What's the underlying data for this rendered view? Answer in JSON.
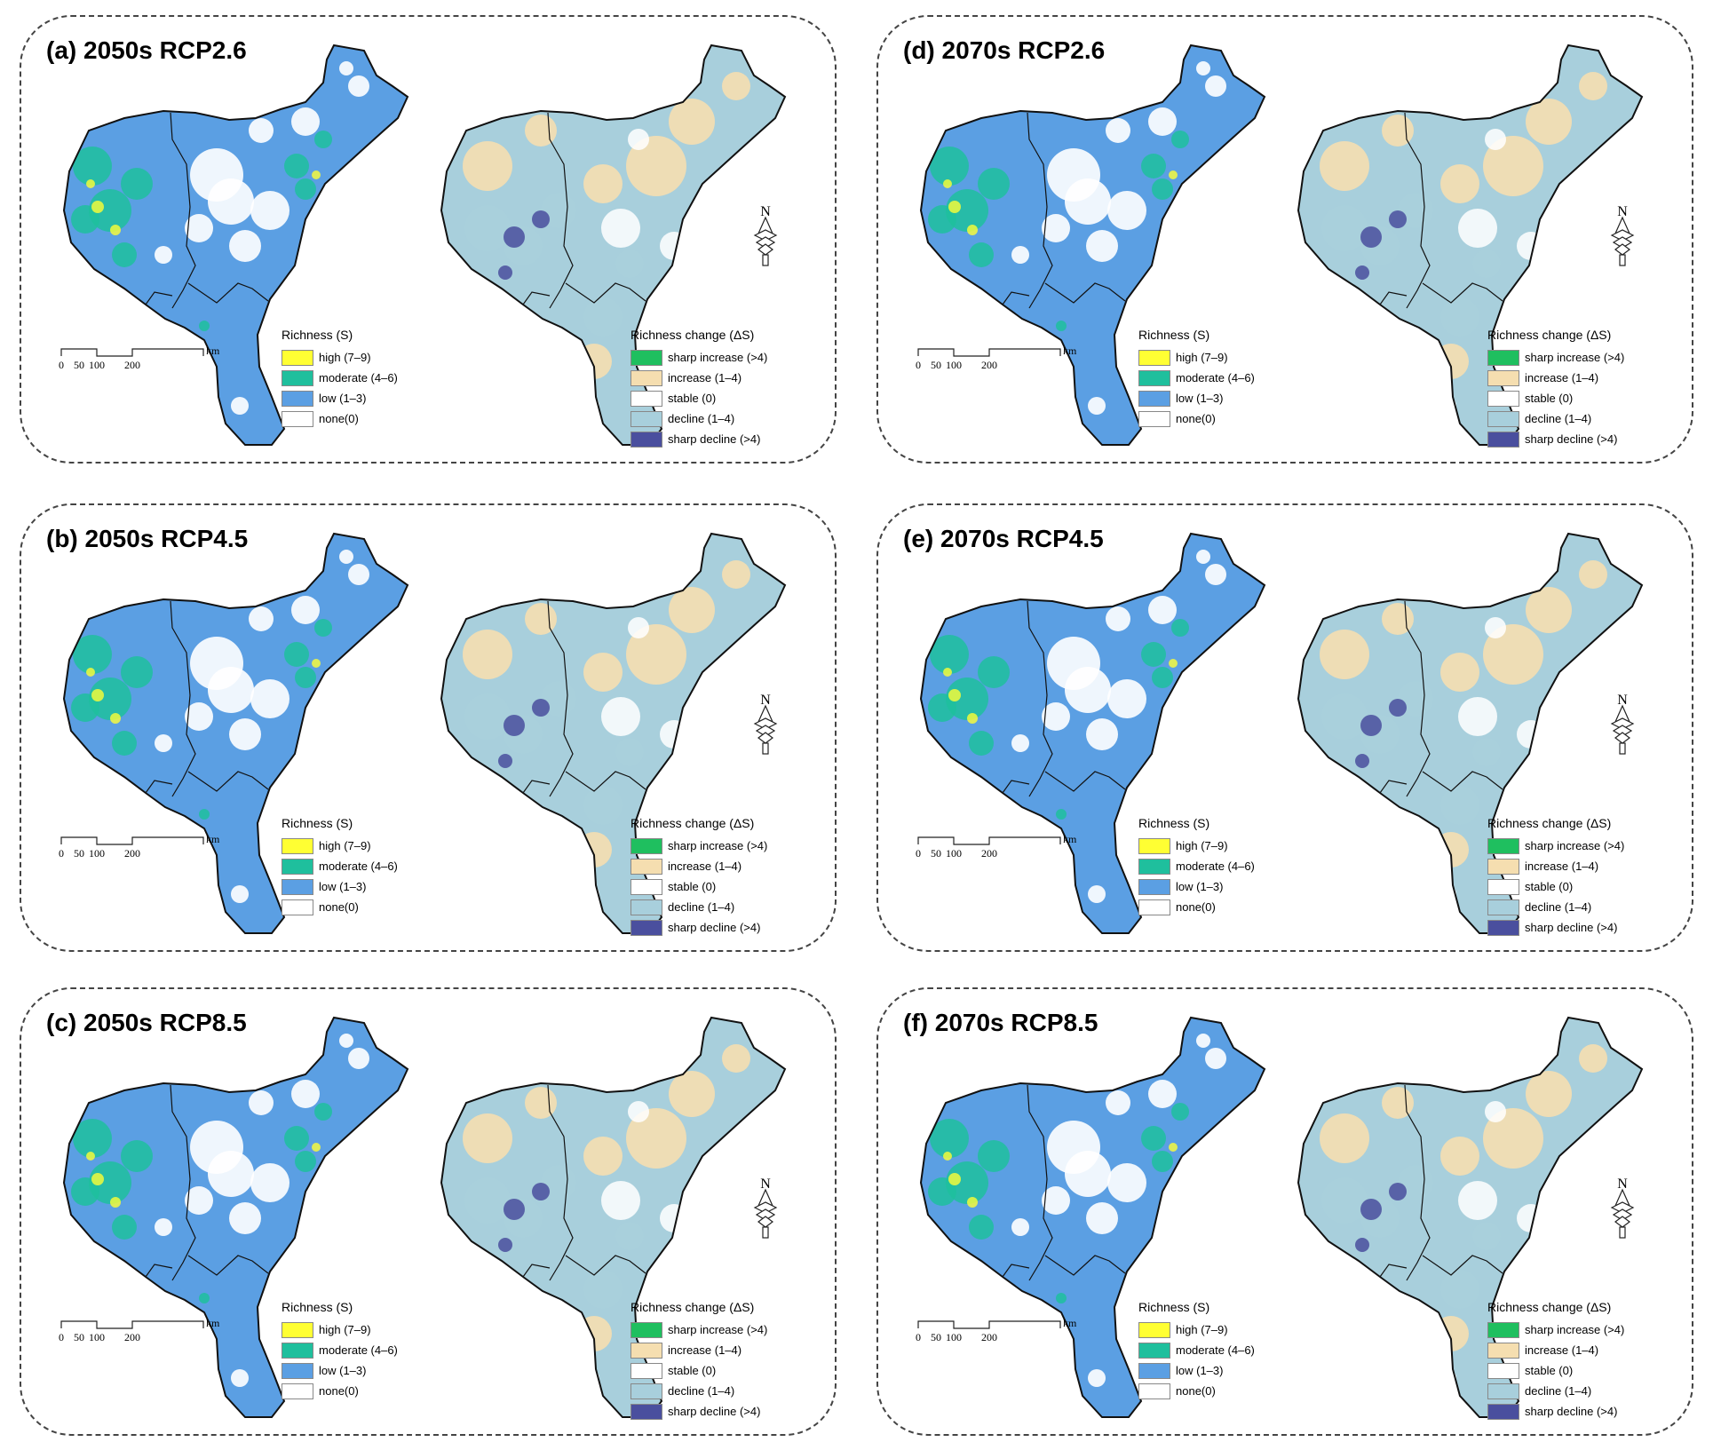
{
  "colors": {
    "high": "#ffff33",
    "moderate": "#1fbf9d",
    "low": "#5b9fe3",
    "none": "#ffffff",
    "sharp_increase": "#1fbf5f",
    "increase": "#f5deb0",
    "stable": "#ffffff",
    "decline": "#a8cfdc",
    "sharp_decline": "#4a4f9e",
    "outline": "#111111"
  },
  "richness_legend": {
    "title": "Richness (S)",
    "items": [
      {
        "key": "high",
        "label": "high (7–9)"
      },
      {
        "key": "moderate",
        "label": "moderate (4–6)"
      },
      {
        "key": "low",
        "label": "low (1–3)"
      },
      {
        "key": "none",
        "label": "none(0)"
      }
    ]
  },
  "change_legend": {
    "title": "Richness change (ΔS)",
    "items": [
      {
        "key": "sharp_increase",
        "label": "sharp increase (>4)"
      },
      {
        "key": "increase",
        "label": "increase (1–4)"
      },
      {
        "key": "stable",
        "label": "stable (0)"
      },
      {
        "key": "decline",
        "label": "decline (1–4)"
      },
      {
        "key": "sharp_decline",
        "label": "sharp decline (>4)"
      }
    ]
  },
  "scale_bar": {
    "ticks": [
      "0",
      "50",
      "100",
      "200"
    ],
    "unit": "km"
  },
  "north_arrow": {
    "label": "N",
    "icon": "north-arrow-icon"
  },
  "panels": [
    {
      "id": "a",
      "title": "(a) 2050s RCP2.6"
    },
    {
      "id": "b",
      "title": "(b) 2050s RCP4.5"
    },
    {
      "id": "c",
      "title": "(c) 2050s RCP8.5"
    },
    {
      "id": "d",
      "title": "(d) 2070s RCP2.6"
    },
    {
      "id": "e",
      "title": "(e) 2070s RCP4.5"
    },
    {
      "id": "f",
      "title": "(f) 2070s RCP8.5"
    }
  ]
}
